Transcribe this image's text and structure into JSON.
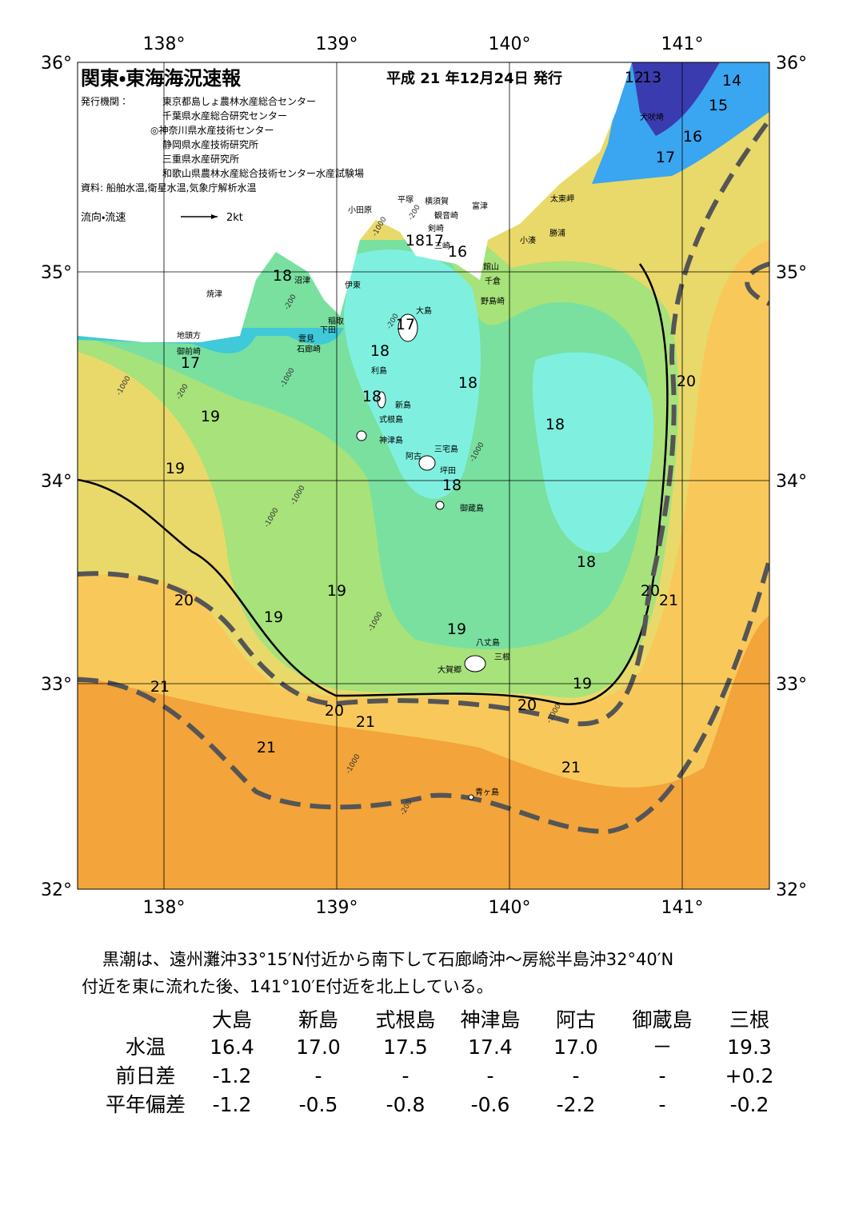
{
  "header": {
    "title": "関東・東海海況速報",
    "date": "平成 21 年12月24日 発行"
  },
  "publisher": {
    "label": "発行機関：",
    "orgs": [
      "東京都島しょ農林水産総合センター",
      "千葉県水産総合研究センター",
      "◎神奈川県水産技術センター",
      "静岡県水産技術研究所",
      "三重県水産研究所",
      "和歌山県農林水産総合技術センター水産試験場"
    ]
  },
  "source": "資料: 船舶水温,衛星水温,気象庁解析水温",
  "legend": {
    "label": "流向・流速",
    "scale": "2kt"
  },
  "axes": {
    "top": [
      "138°",
      "139°",
      "140°",
      "141°"
    ],
    "bottom": [
      "138°",
      "139°",
      "140°",
      "141°"
    ],
    "left": [
      "36°",
      "35°",
      "34°",
      "33°",
      "32°"
    ],
    "right": [
      "36°",
      "35°",
      "34°",
      "33°",
      "32°"
    ]
  },
  "places": [
    "犬吠埼",
    "太東岬",
    "勝浦",
    "小湊",
    "館山",
    "千倉",
    "野島崎",
    "富津",
    "横須賀",
    "観音崎",
    "平塚",
    "剣崎",
    "三崎",
    "小田原",
    "沼津",
    "伊東",
    "焼津",
    "稲取",
    "下田",
    "雲見",
    "石廊崎",
    "地頭方",
    "御前崎",
    "大島",
    "利島",
    "新島",
    "式根島",
    "神津島",
    "三宅島",
    "阿古",
    "坪田",
    "御蔵島",
    "八丈島",
    "三根",
    "大賀郷",
    "青ヶ島"
  ],
  "temperature_labels": [
    "12",
    "13",
    "14",
    "15",
    "16",
    "17",
    "18",
    "17",
    "16",
    "18",
    "17",
    "18",
    "17",
    "18",
    "18",
    "18",
    "19",
    "19",
    "18",
    "20",
    "18",
    "20",
    "21",
    "20",
    "19",
    "19",
    "19",
    "21",
    "19",
    "20",
    "20",
    "21",
    "21",
    "21"
  ],
  "depth_labels": [
    "-200",
    "-1000",
    "-200",
    "-1000",
    "-200",
    "-1000",
    "-200",
    "-1000",
    "-1000",
    "-1000",
    "-1000",
    "-1000",
    "-1000",
    "-200"
  ],
  "summary": [
    "黒潮は、遠州灘沖33°15′N付近から南下して石廊崎沖～房総半島沖32°40′N",
    "付近を東に流れた後、141°10′E付近を北上している。"
  ],
  "table": {
    "header": [
      "大島",
      "新島",
      "式根島",
      "神津島",
      "阿古",
      "御蔵島",
      "三根"
    ],
    "rows": [
      [
        "水温",
        "16.4",
        "17.0",
        "17.5",
        "17.4",
        "17.0",
        "－",
        "19.3"
      ],
      [
        "前日差",
        "-1.2",
        "-",
        "-",
        "-",
        "-",
        "-",
        "+0.2"
      ],
      [
        "平年偏差",
        "-1.2",
        "-0.5",
        "-0.8",
        "-0.6",
        "-2.2",
        "-",
        "-0.2"
      ]
    ]
  }
}
